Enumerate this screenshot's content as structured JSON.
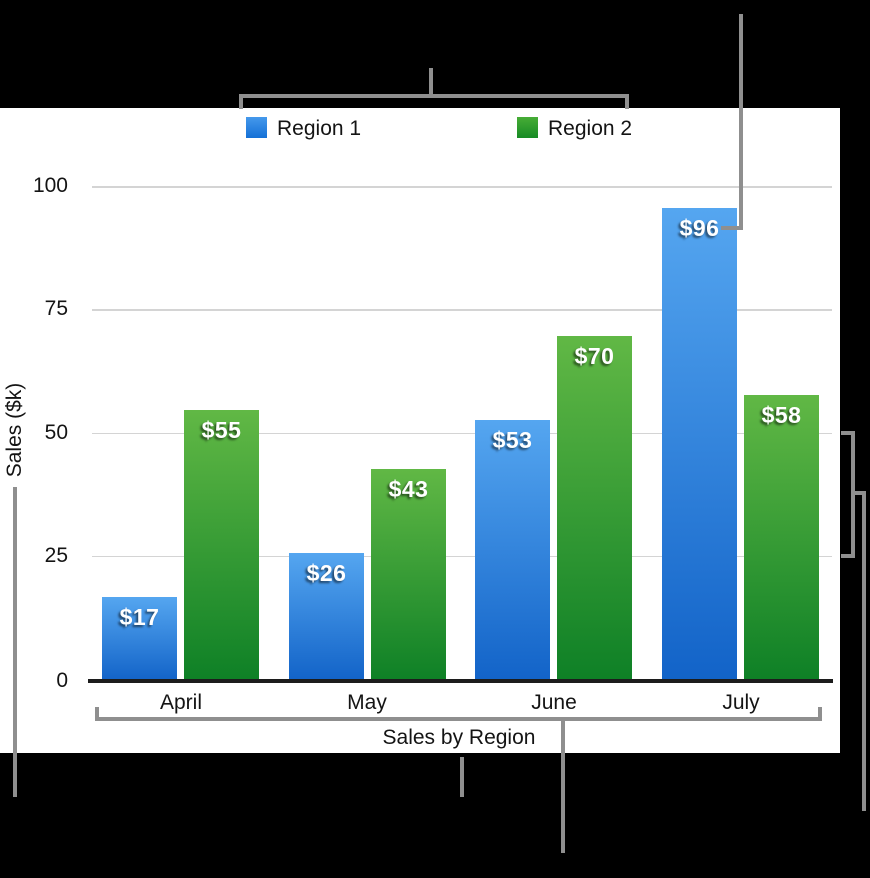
{
  "chart_data": {
    "type": "bar",
    "title": "Sales by Region",
    "xlabel": "Sales by Region",
    "ylabel": "Sales ($k)",
    "categories": [
      "April",
      "May",
      "June",
      "July"
    ],
    "series": [
      {
        "name": "Region 1",
        "values": [
          17,
          26,
          53,
          96
        ],
        "labels": [
          "$17",
          "$26",
          "$53",
          "$96"
        ],
        "color_top": "#55a6f0",
        "color_bottom": "#1263c8"
      },
      {
        "name": "Region 2",
        "values": [
          55,
          43,
          70,
          58
        ],
        "labels": [
          "$55",
          "$43",
          "$70",
          "$58"
        ],
        "color_top": "#61b845",
        "color_bottom": "#0e8026"
      }
    ],
    "yticks": [
      0,
      25,
      50,
      75,
      100
    ],
    "ylim": [
      0,
      100
    ],
    "grid": true,
    "legend_position": "top"
  },
  "colors": {
    "annotation_line": "#8f8f8f",
    "gridline": "#d4d4d4",
    "axis_line": "#1c1c1c",
    "background": "#000000",
    "plot_background": "#ffffff"
  }
}
